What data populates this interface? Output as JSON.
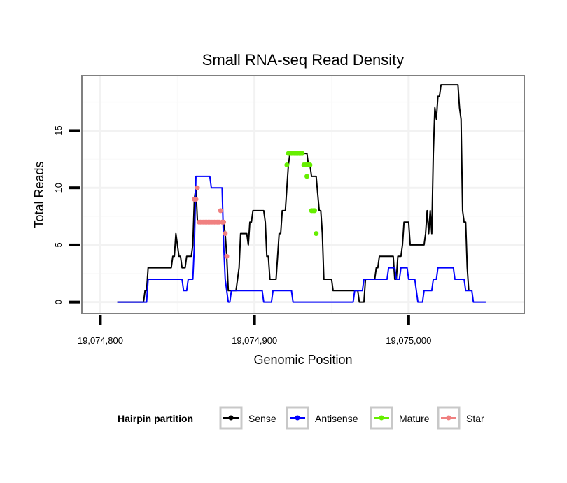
{
  "chart_data": {
    "type": "line",
    "title": "Small RNA-seq Read Density",
    "xlabel": "Genomic Position",
    "ylabel": "Total Reads",
    "xlim": [
      19074788,
      19075075
    ],
    "ylim": [
      -1,
      19.8
    ],
    "x_ticks": [
      {
        "value": 19074800,
        "label": "19,074,800"
      },
      {
        "value": 19074900,
        "label": "19,074,900"
      },
      {
        "value": 19075000,
        "label": "19,075,000"
      }
    ],
    "y_ticks": [
      {
        "value": 0,
        "label": "0"
      },
      {
        "value": 5,
        "label": "5"
      },
      {
        "value": 10,
        "label": "10"
      },
      {
        "value": 15,
        "label": "15"
      }
    ],
    "grid": true,
    "legend": {
      "title": "Hairpin partition",
      "position": "bottom",
      "entries": [
        "Sense",
        "Antisense",
        "Mature",
        "Star"
      ]
    },
    "series": [
      {
        "name": "Sense",
        "color": "#000000",
        "style": "line",
        "points": [
          [
            19074811,
            0
          ],
          [
            19074828,
            0
          ],
          [
            19074829,
            1
          ],
          [
            19074830,
            1
          ],
          [
            19074831,
            3
          ],
          [
            19074846,
            3
          ],
          [
            19074847,
            4
          ],
          [
            19074848,
            4
          ],
          [
            19074849,
            6
          ],
          [
            19074850,
            5
          ],
          [
            19074851,
            4
          ],
          [
            19074852,
            4
          ],
          [
            19074853,
            3
          ],
          [
            19074855,
            3
          ],
          [
            19074856,
            4
          ],
          [
            19074859,
            4
          ],
          [
            19074860,
            5
          ],
          [
            19074861,
            9
          ],
          [
            19074862,
            10
          ],
          [
            19074863,
            7
          ],
          [
            19074880,
            7
          ],
          [
            19074881,
            6
          ],
          [
            19074882,
            4
          ],
          [
            19074883,
            1
          ],
          [
            19074888,
            1
          ],
          [
            19074889,
            2
          ],
          [
            19074890,
            3
          ],
          [
            19074891,
            6
          ],
          [
            19074895,
            6
          ],
          [
            19074896,
            5
          ],
          [
            19074897,
            7
          ],
          [
            19074898,
            7
          ],
          [
            19074899,
            8
          ],
          [
            19074906,
            8
          ],
          [
            19074907,
            7
          ],
          [
            19074908,
            4
          ],
          [
            19074909,
            4
          ],
          [
            19074910,
            2
          ],
          [
            19074914,
            2
          ],
          [
            19074915,
            4
          ],
          [
            19074916,
            6
          ],
          [
            19074917,
            6
          ],
          [
            19074918,
            8
          ],
          [
            19074920,
            8
          ],
          [
            19074921,
            10
          ],
          [
            19074922,
            12
          ],
          [
            19074923,
            13
          ],
          [
            19074934,
            13
          ],
          [
            19074935,
            12
          ],
          [
            19074936,
            12
          ],
          [
            19074937,
            11
          ],
          [
            19074940,
            11
          ],
          [
            19074942,
            8
          ],
          [
            19074943,
            8
          ],
          [
            19074944,
            6
          ],
          [
            19074945,
            2
          ],
          [
            19074950,
            2
          ],
          [
            19074951,
            1
          ],
          [
            19074967,
            1
          ],
          [
            19074968,
            0
          ],
          [
            19074971,
            0
          ],
          [
            19074972,
            2
          ],
          [
            19074978,
            2
          ],
          [
            19074979,
            3
          ],
          [
            19074980,
            3
          ],
          [
            19074981,
            4
          ],
          [
            19074990,
            4
          ],
          [
            19074991,
            2
          ],
          [
            19074992,
            2
          ],
          [
            19074993,
            4
          ],
          [
            19074995,
            4
          ],
          [
            19074996,
            5
          ],
          [
            19074997,
            7
          ],
          [
            19075000,
            7
          ],
          [
            19075001,
            5
          ],
          [
            19075010,
            5
          ],
          [
            19075011,
            6
          ],
          [
            19075012,
            8
          ],
          [
            19075013,
            6
          ],
          [
            19075014,
            8
          ],
          [
            19075015,
            6
          ],
          [
            19075016,
            13
          ],
          [
            19075017,
            17
          ],
          [
            19075018,
            16
          ],
          [
            19075019,
            18
          ],
          [
            19075020,
            18
          ],
          [
            19075021,
            19
          ],
          [
            19075032,
            19
          ],
          [
            19075033,
            17
          ],
          [
            19075034,
            16
          ],
          [
            19075035,
            8
          ],
          [
            19075036,
            7
          ],
          [
            19075037,
            7
          ],
          [
            19075038,
            3
          ],
          [
            19075039,
            1
          ]
        ]
      },
      {
        "name": "Antisense",
        "color": "#0000ff",
        "style": "line",
        "points": [
          [
            19074811,
            0
          ],
          [
            19074830,
            0
          ],
          [
            19074831,
            2
          ],
          [
            19074853,
            2
          ],
          [
            19074854,
            1
          ],
          [
            19074856,
            1
          ],
          [
            19074857,
            2
          ],
          [
            19074860,
            2
          ],
          [
            19074861,
            5
          ],
          [
            19074862,
            11
          ],
          [
            19074871,
            11
          ],
          [
            19074872,
            10
          ],
          [
            19074879,
            10
          ],
          [
            19074880,
            5
          ],
          [
            19074881,
            2
          ],
          [
            19074882,
            1
          ],
          [
            19074883,
            0
          ],
          [
            19074884,
            0
          ],
          [
            19074885,
            1
          ],
          [
            19074905,
            1
          ],
          [
            19074906,
            0
          ],
          [
            19074911,
            0
          ],
          [
            19074912,
            1
          ],
          [
            19074924,
            1
          ],
          [
            19074925,
            0
          ],
          [
            19074964,
            0
          ],
          [
            19074965,
            1
          ],
          [
            19074970,
            1
          ],
          [
            19074971,
            2
          ],
          [
            19074986,
            2
          ],
          [
            19074987,
            3
          ],
          [
            19074991,
            3
          ],
          [
            19074992,
            2
          ],
          [
            19074994,
            2
          ],
          [
            19074995,
            3
          ],
          [
            19074999,
            3
          ],
          [
            19075000,
            2
          ],
          [
            19075004,
            2
          ],
          [
            19075005,
            1
          ],
          [
            19075006,
            0
          ],
          [
            19075009,
            0
          ],
          [
            19075010,
            1
          ],
          [
            19075015,
            1
          ],
          [
            19075016,
            2
          ],
          [
            19075018,
            2
          ],
          [
            19075019,
            3
          ],
          [
            19075029,
            3
          ],
          [
            19075030,
            2
          ],
          [
            19075036,
            2
          ],
          [
            19075037,
            1
          ],
          [
            19075041,
            1
          ],
          [
            19075042,
            0
          ],
          [
            19075050,
            0
          ]
        ]
      },
      {
        "name": "Mature",
        "color": "#66ee00",
        "style": "points",
        "points": [
          [
            19074921,
            12
          ],
          [
            19074922,
            13
          ],
          [
            19074923,
            13
          ],
          [
            19074924,
            13
          ],
          [
            19074925,
            13
          ],
          [
            19074926,
            13
          ],
          [
            19074927,
            13
          ],
          [
            19074928,
            13
          ],
          [
            19074929,
            13
          ],
          [
            19074930,
            13
          ],
          [
            19074931,
            13
          ],
          [
            19074932,
            12
          ],
          [
            19074933,
            12
          ],
          [
            19074934,
            11
          ],
          [
            19074934,
            12
          ],
          [
            19074935,
            12
          ],
          [
            19074936,
            12
          ],
          [
            19074937,
            8
          ],
          [
            19074938,
            8
          ],
          [
            19074939,
            8
          ],
          [
            19074940,
            6
          ]
        ]
      },
      {
        "name": "Star",
        "color": "#f08080",
        "style": "points",
        "points": [
          [
            19074861,
            9
          ],
          [
            19074862,
            9
          ],
          [
            19074863,
            10
          ],
          [
            19074864,
            7
          ],
          [
            19074865,
            7
          ],
          [
            19074866,
            7
          ],
          [
            19074867,
            7
          ],
          [
            19074868,
            7
          ],
          [
            19074869,
            7
          ],
          [
            19074870,
            7
          ],
          [
            19074871,
            7
          ],
          [
            19074872,
            7
          ],
          [
            19074873,
            7
          ],
          [
            19074874,
            7
          ],
          [
            19074875,
            7
          ],
          [
            19074876,
            7
          ],
          [
            19074877,
            7
          ],
          [
            19074878,
            8
          ],
          [
            19074879,
            7
          ],
          [
            19074880,
            7
          ],
          [
            19074881,
            6
          ],
          [
            19074882,
            4
          ]
        ]
      }
    ]
  }
}
